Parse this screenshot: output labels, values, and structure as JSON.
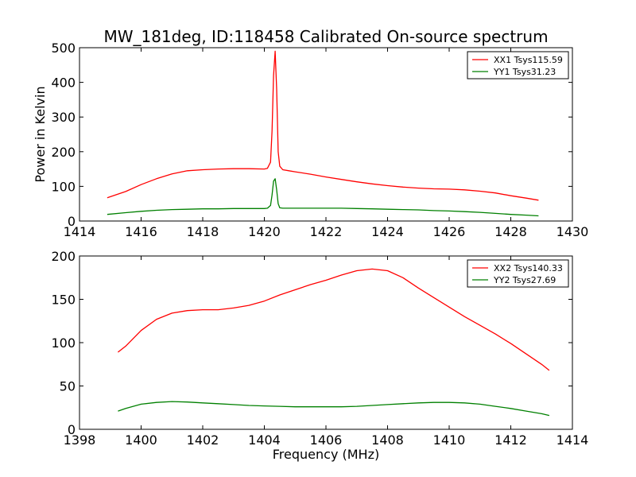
{
  "title": "MW_181deg, ID:118458 Calibrated On-source spectrum",
  "chart_data": [
    {
      "type": "line",
      "title": "MW_181deg, ID:118458 Calibrated On-source spectrum",
      "xlabel": "",
      "ylabel": "Power in Kelvin",
      "xlim": [
        1414,
        1430
      ],
      "ylim": [
        0,
        500
      ],
      "xticks": [
        "1414",
        "1416",
        "1418",
        "1420",
        "1422",
        "1424",
        "1426",
        "1428",
        "1430"
      ],
      "yticks": [
        "0",
        "100",
        "200",
        "300",
        "400",
        "500"
      ],
      "legend_position": "upper right",
      "series": [
        {
          "name": "XX1 Tsys115.59",
          "color": "#ff0000",
          "x": [
            1414.9,
            1415.5,
            1416,
            1416.5,
            1417,
            1417.5,
            1418,
            1418.5,
            1419,
            1419.5,
            1420,
            1420.1,
            1420.2,
            1420.25,
            1420.3,
            1420.35,
            1420.4,
            1420.45,
            1420.5,
            1420.6,
            1420.8,
            1421,
            1421.5,
            1422,
            1422.5,
            1423,
            1423.5,
            1424,
            1424.5,
            1425,
            1425.5,
            1426,
            1426.5,
            1427,
            1427.5,
            1428,
            1428.5,
            1428.9
          ],
          "y": [
            67,
            85,
            105,
            122,
            136,
            145,
            148,
            150,
            151,
            151,
            150,
            152,
            170,
            260,
            420,
            490,
            380,
            200,
            158,
            148,
            145,
            142,
            135,
            127,
            120,
            113,
            107,
            102,
            98,
            95,
            93,
            92,
            90,
            86,
            81,
            73,
            66,
            60
          ]
        },
        {
          "name": "YY1 Tsys31.23",
          "color": "#008000",
          "x": [
            1414.9,
            1415.5,
            1416,
            1416.5,
            1417,
            1417.5,
            1418,
            1418.5,
            1419,
            1419.5,
            1420,
            1420.1,
            1420.2,
            1420.25,
            1420.3,
            1420.35,
            1420.4,
            1420.45,
            1420.5,
            1420.6,
            1420.8,
            1421,
            1421.5,
            1422,
            1422.5,
            1423,
            1423.5,
            1424,
            1424.5,
            1425,
            1425.5,
            1426,
            1426.5,
            1427,
            1427.5,
            1428,
            1428.5,
            1428.9
          ],
          "y": [
            19,
            24,
            28,
            31,
            33,
            34,
            35,
            35,
            36,
            36,
            36,
            37,
            45,
            75,
            115,
            122,
            90,
            50,
            38,
            37,
            37,
            37,
            37,
            37,
            37,
            36,
            35,
            34,
            33,
            32,
            30,
            29,
            27,
            25,
            22,
            19,
            17,
            15
          ]
        }
      ]
    },
    {
      "type": "line",
      "title": "",
      "xlabel": "Frequency (MHz)",
      "ylabel": "",
      "xlim": [
        1398,
        1414
      ],
      "ylim": [
        0,
        200
      ],
      "xticks": [
        "1398",
        "1400",
        "1402",
        "1404",
        "1406",
        "1408",
        "1410",
        "1412",
        "1414"
      ],
      "yticks": [
        "0",
        "50",
        "100",
        "150",
        "200"
      ],
      "legend_position": "upper right",
      "series": [
        {
          "name": "XX2 Tsys140.33",
          "color": "#ff0000",
          "x": [
            1399.25,
            1399.5,
            1400,
            1400.5,
            1401,
            1401.5,
            1402,
            1402.5,
            1403,
            1403.5,
            1404,
            1404.5,
            1405,
            1405.5,
            1406,
            1406.5,
            1407,
            1407.5,
            1408,
            1408.5,
            1409,
            1409.5,
            1410,
            1410.5,
            1411,
            1411.5,
            1412,
            1412.5,
            1413,
            1413.25
          ],
          "y": [
            89,
            96,
            114,
            127,
            134,
            137,
            138,
            138,
            140,
            143,
            148,
            155,
            161,
            167,
            172,
            178,
            183,
            185,
            183,
            175,
            163,
            152,
            141,
            130,
            120,
            110,
            99,
            87,
            75,
            68
          ]
        },
        {
          "name": "YY2 Tsys27.69",
          "color": "#008000",
          "x": [
            1399.25,
            1399.5,
            1400,
            1400.5,
            1401,
            1401.5,
            1402,
            1402.5,
            1403,
            1403.5,
            1404,
            1404.5,
            1405,
            1405.5,
            1406,
            1406.5,
            1407,
            1407.5,
            1408,
            1408.5,
            1409,
            1409.5,
            1410,
            1410.5,
            1411,
            1411.5,
            1412,
            1412.5,
            1413,
            1413.25
          ],
          "y": [
            21,
            24,
            29,
            31,
            32,
            31.5,
            30.5,
            29.5,
            28.5,
            27.5,
            27,
            26.5,
            26,
            26,
            26,
            26,
            26.5,
            27.5,
            28.5,
            29.5,
            30.5,
            31,
            31,
            30.5,
            29,
            26.5,
            24,
            21,
            18,
            16
          ]
        }
      ]
    }
  ]
}
